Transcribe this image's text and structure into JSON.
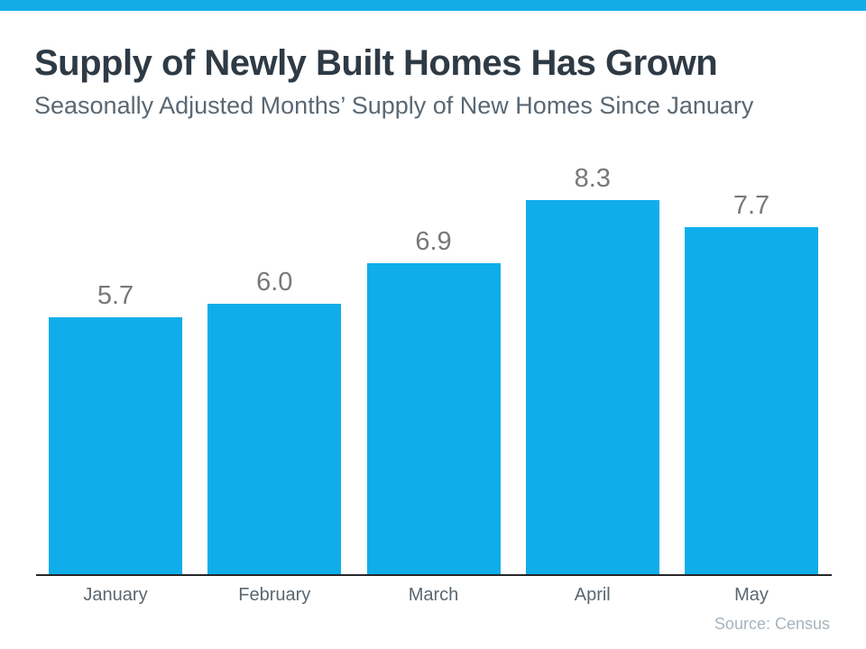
{
  "page": {
    "title": "Supply of Newly Built Homes Has Grown",
    "subtitle": "Seasonally Adjusted Months’ Supply of New Homes Since January",
    "source": "Source: Census"
  },
  "chart_data": {
    "type": "bar",
    "title": "Supply of Newly Built Homes Has Grown",
    "subtitle": "Seasonally Adjusted Months’ Supply of New Homes Since January",
    "categories": [
      "January",
      "February",
      "March",
      "April",
      "May"
    ],
    "values": [
      5.7,
      6.0,
      6.9,
      8.3,
      7.7
    ],
    "data_labels": [
      "5.7",
      "6.0",
      "6.9",
      "8.3",
      "7.7"
    ],
    "xlabel": "",
    "ylabel": "",
    "ylim": [
      0,
      9
    ],
    "grid": false,
    "legend": "none",
    "y_axis_ticks_visible": false,
    "source": "Source: Census"
  },
  "colors": {
    "accent_bar": "#12ADE9",
    "bar_fill": "#0FAEEA",
    "title_text": "#2E3A44",
    "subtitle_text": "#5A6873",
    "value_label_text": "#77787B",
    "axis_label_text": "#5B6770",
    "axis_line": "#26272B",
    "source_text": "#A9B3BB",
    "background": "#FFFFFF"
  }
}
